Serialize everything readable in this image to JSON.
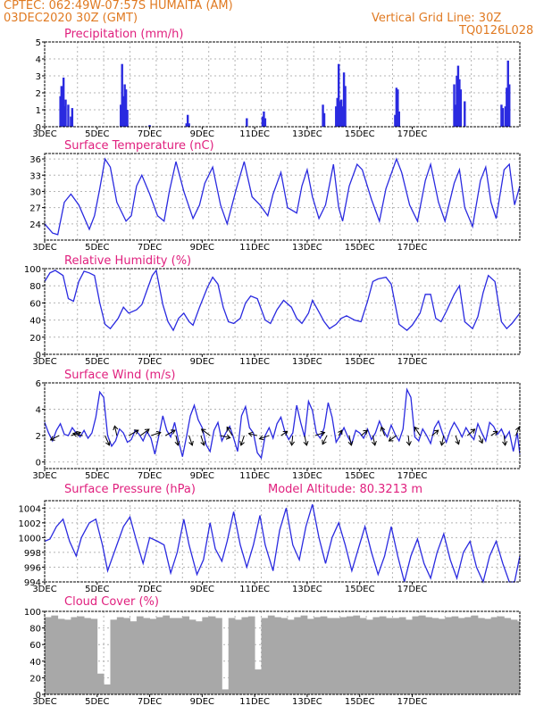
{
  "header": {
    "line1_left": "CPTEC:   062:49W-07:57S   HUMAITA (AM)",
    "line2_left": "03DEC2020 30Z (GMT)",
    "line2_right": "Vertical Grid Line: 30Z",
    "line3_right": "TQ0126L028"
  },
  "colors": {
    "header": "#e07a22",
    "panel_title": "#e0207e",
    "series": "#2a2ae0",
    "cloud": "#a8a8a8",
    "grid": "#b4b4b4"
  },
  "date_labels": [
    "3DEC",
    "5DEC",
    "7DEC",
    "9DEC",
    "11DEC",
    "13DEC",
    "15DEC",
    "17DEC"
  ],
  "chart_data": [
    {
      "id": "precip",
      "type": "bar",
      "title": "Precipitation (mm/h)",
      "ylim": [
        0,
        5
      ],
      "yticks": [
        "0",
        "1",
        "2",
        "3",
        "4",
        "5"
      ],
      "x_unit": "days since 3DEC 00Z",
      "x": [
        0.6,
        0.64,
        0.68,
        0.72,
        0.76,
        0.8,
        0.9,
        1.0,
        1.05,
        2.9,
        2.95,
        3.0,
        3.05,
        3.1,
        3.15,
        4.0,
        5.4,
        5.45,
        5.5,
        7.7,
        8.3,
        8.35,
        8.4,
        10.6,
        10.65,
        11.1,
        11.15,
        11.2,
        11.25,
        11.3,
        11.35,
        11.4,
        11.45,
        13.35,
        13.4,
        13.45,
        13.5,
        15.6,
        15.65,
        15.7,
        15.75,
        15.8,
        15.85,
        16.0,
        17.4,
        17.45,
        17.55,
        17.6,
        17.65,
        17.7
      ],
      "values": [
        1.8,
        2.4,
        1.0,
        2.9,
        1.2,
        1.6,
        1.3,
        0.6,
        1.1,
        1.3,
        3.7,
        1.8,
        2.5,
        2.2,
        1.0,
        0.1,
        0.2,
        0.7,
        0.2,
        0.5,
        0.6,
        0.9,
        0.5,
        1.3,
        0.8,
        1.2,
        1.7,
        3.7,
        1.5,
        1.6,
        1.2,
        3.2,
        2.4,
        0.7,
        2.3,
        2.2,
        0.9,
        2.5,
        1.3,
        3.0,
        3.6,
        2.8,
        2.2,
        1.5,
        1.3,
        1.1,
        1.2,
        2.3,
        3.9,
        2.5
      ]
    },
    {
      "id": "temp",
      "type": "line",
      "title": "Surface Temperature (nC)",
      "ylim": [
        21,
        37
      ],
      "yticks": [
        "24",
        "27",
        "30",
        "33",
        "36"
      ],
      "x_unit": "days since 3DEC 00Z",
      "x": [
        0,
        0.3,
        0.5,
        0.75,
        1.0,
        1.3,
        1.7,
        1.9,
        2.1,
        2.3,
        2.5,
        2.75,
        3.1,
        3.3,
        3.5,
        3.7,
        4.0,
        4.3,
        4.55,
        4.75,
        5.0,
        5.3,
        5.65,
        5.9,
        6.1,
        6.4,
        6.7,
        6.95,
        7.3,
        7.6,
        7.9,
        8.2,
        8.5,
        8.7,
        9.0,
        9.25,
        9.6,
        9.8,
        10.0,
        10.2,
        10.45,
        10.7,
        11.0,
        11.2,
        11.35,
        11.6,
        11.9,
        12.1,
        12.45,
        12.75,
        13.0,
        13.4,
        13.6,
        13.9,
        14.2,
        14.5,
        14.7,
        15.0,
        15.25,
        15.6,
        15.8,
        16.0,
        16.3,
        16.6,
        16.8,
        17.0,
        17.2,
        17.5,
        17.7,
        17.9,
        18.1
      ],
      "values": [
        24.0,
        22.3,
        22.0,
        28.0,
        29.5,
        27.5,
        23.0,
        25.5,
        30.5,
        36.0,
        34.5,
        28.0,
        24.5,
        25.5,
        31.0,
        33.0,
        29.5,
        25.5,
        24.5,
        30.0,
        35.5,
        30.0,
        25.0,
        27.5,
        31.5,
        34.5,
        27.5,
        24.0,
        30.5,
        35.5,
        29.0,
        27.5,
        25.5,
        29.5,
        33.5,
        27.0,
        26.0,
        31.0,
        34.0,
        29.0,
        25.0,
        27.5,
        35.0,
        27.0,
        24.5,
        31.0,
        35.0,
        34.0,
        28.5,
        24.5,
        30.5,
        36.0,
        33.5,
        27.5,
        24.5,
        32.0,
        35.0,
        28.0,
        24.5,
        31.5,
        34.0,
        27.0,
        23.5,
        32.0,
        34.5,
        28.0,
        25.0,
        34.0,
        35.0,
        27.5,
        31.0
      ]
    },
    {
      "id": "rh",
      "type": "line",
      "title": "Relative Humidity (%)",
      "ylim": [
        0,
        100
      ],
      "yticks": [
        "0",
        "20",
        "40",
        "60",
        "80",
        "100"
      ],
      "x_unit": "days since 3DEC 00Z",
      "x": [
        0,
        0.2,
        0.4,
        0.7,
        0.9,
        1.1,
        1.3,
        1.5,
        1.7,
        1.9,
        2.1,
        2.3,
        2.5,
        2.8,
        3.0,
        3.2,
        3.5,
        3.7,
        3.9,
        4.1,
        4.25,
        4.5,
        4.7,
        4.9,
        5.1,
        5.3,
        5.5,
        5.65,
        5.9,
        6.2,
        6.4,
        6.6,
        6.8,
        7.0,
        7.2,
        7.45,
        7.65,
        7.85,
        8.1,
        8.4,
        8.6,
        8.85,
        9.1,
        9.4,
        9.6,
        9.8,
        10.05,
        10.2,
        10.4,
        10.65,
        10.85,
        11.1,
        11.3,
        11.5,
        11.8,
        12.05,
        12.3,
        12.5,
        12.7,
        13.0,
        13.2,
        13.5,
        13.8,
        14.0,
        14.3,
        14.5,
        14.7,
        14.9,
        15.1,
        15.3,
        15.6,
        15.8,
        16.0,
        16.3,
        16.5,
        16.7,
        16.9,
        17.15,
        17.4,
        17.6,
        17.8,
        18.1
      ],
      "values": [
        85,
        95,
        98,
        92,
        65,
        62,
        85,
        97,
        95,
        92,
        60,
        35,
        30,
        42,
        55,
        48,
        52,
        58,
        75,
        92,
        98,
        58,
        38,
        28,
        42,
        48,
        38,
        34,
        55,
        78,
        90,
        82,
        55,
        38,
        36,
        42,
        60,
        68,
        65,
        40,
        36,
        52,
        63,
        55,
        42,
        36,
        48,
        63,
        52,
        38,
        30,
        35,
        42,
        45,
        40,
        38,
        62,
        85,
        88,
        90,
        82,
        35,
        28,
        34,
        48,
        70,
        70,
        42,
        38,
        50,
        70,
        80,
        38,
        30,
        44,
        72,
        92,
        85,
        38,
        30,
        36,
        48
      ]
    },
    {
      "id": "wind",
      "type": "line",
      "title": "Surface Wind (m/s)",
      "ylim": [
        -0.5,
        6
      ],
      "yticks": [
        "0",
        "2",
        "4",
        "6"
      ],
      "x_unit": "days since 3DEC 00Z",
      "x": [
        0,
        0.15,
        0.3,
        0.45,
        0.6,
        0.75,
        0.9,
        1.05,
        1.2,
        1.35,
        1.5,
        1.65,
        1.8,
        1.95,
        2.1,
        2.25,
        2.4,
        2.55,
        2.7,
        2.85,
        3.0,
        3.15,
        3.3,
        3.45,
        3.6,
        3.75,
        3.9,
        4.05,
        4.2,
        4.35,
        4.5,
        4.65,
        4.8,
        4.95,
        5.1,
        5.25,
        5.4,
        5.55,
        5.7,
        5.85,
        6.0,
        6.15,
        6.3,
        6.45,
        6.6,
        6.75,
        6.9,
        7.05,
        7.2,
        7.35,
        7.5,
        7.65,
        7.8,
        7.95,
        8.1,
        8.25,
        8.4,
        8.55,
        8.7,
        8.85,
        9.0,
        9.15,
        9.3,
        9.45,
        9.6,
        9.75,
        9.9,
        10.05,
        10.2,
        10.35,
        10.5,
        10.65,
        10.8,
        10.95,
        11.1,
        11.25,
        11.4,
        11.55,
        11.7,
        11.85,
        12.0,
        12.15,
        12.3,
        12.45,
        12.6,
        12.75,
        12.9,
        13.05,
        13.2,
        13.35,
        13.5,
        13.65,
        13.8,
        13.95,
        14.1,
        14.25,
        14.4,
        14.55,
        14.7,
        14.85,
        15.0,
        15.15,
        15.3,
        15.45,
        15.6,
        15.75,
        15.9,
        16.05,
        16.2,
        16.35,
        16.5,
        16.65,
        16.8,
        16.95,
        17.1,
        17.25,
        17.4,
        17.55,
        17.7,
        17.85,
        18.0,
        18.1
      ],
      "values": [
        3.0,
        2.2,
        1.6,
        2.4,
        2.9,
        2.1,
        2.0,
        2.6,
        2.2,
        1.9,
        2.4,
        1.8,
        2.2,
        3.4,
        5.3,
        4.9,
        2.0,
        1.2,
        1.6,
        2.5,
        2.2,
        1.5,
        1.7,
        2.4,
        2.1,
        1.6,
        2.3,
        1.8,
        0.6,
        2.0,
        3.5,
        2.4,
        1.9,
        3.0,
        1.6,
        0.4,
        1.9,
        3.5,
        4.3,
        3.2,
        2.6,
        1.3,
        0.8,
        2.4,
        3.0,
        1.6,
        2.2,
        2.7,
        1.8,
        0.8,
        3.5,
        4.2,
        2.6,
        2.2,
        0.7,
        0.3,
        2.0,
        2.6,
        1.8,
        2.9,
        3.4,
        2.3,
        1.7,
        2.2,
        4.3,
        3.0,
        1.9,
        4.6,
        3.9,
        2.2,
        1.8,
        2.6,
        4.5,
        3.4,
        1.5,
        2.0,
        2.6,
        1.9,
        1.4,
        2.4,
        2.2,
        1.8,
        2.5,
        1.7,
        2.2,
        3.1,
        2.4,
        1.9,
        2.8,
        2.1,
        1.6,
        2.5,
        5.5,
        4.9,
        1.9,
        1.6,
        2.5,
        2.0,
        1.4,
        2.6,
        3.1,
        2.2,
        1.5,
        2.4,
        3.0,
        2.5,
        1.9,
        2.6,
        2.1,
        1.7,
        2.9,
        2.2,
        1.6,
        3.0,
        2.7,
        2.1,
        2.5,
        1.8,
        2.3,
        0.8,
        2.2,
        0.6
      ],
      "vectors_x": [
        0.55,
        1.0,
        1.45,
        2.3,
        2.75,
        3.2,
        3.65,
        4.05,
        4.6,
        5.0,
        5.5,
        5.95,
        6.3,
        6.7,
        7.15,
        7.6,
        8.1,
        8.55,
        9.0,
        9.45,
        9.9,
        10.3,
        10.75,
        11.2,
        11.6,
        12.05,
        12.5,
        12.95,
        13.4,
        13.85,
        14.3,
        14.75,
        15.2,
        15.65,
        16.1,
        16.55,
        17.0,
        17.5,
        17.95
      ],
      "vectors_u": [
        -0.8,
        0.9,
        -0.9,
        0.4,
        -0.2,
        0.9,
        0.8,
        0.9,
        0.9,
        0.2,
        0.3,
        0.3,
        -0.8,
        0.9,
        -0.5,
        -0.3,
        -0.8,
        -0.9,
        0.6,
        -0.1,
        0.2,
        0.9,
        -0.4,
        0.3,
        0.2,
        0.6,
        0.2,
        -0.3,
        -0.7,
        0.1,
        -0.5,
        0.6,
        -0.2,
        0.3,
        0.7,
        0.3,
        0.6,
        0.1,
        0.3
      ],
      "vectors_v": [
        -0.4,
        0.3,
        0.2,
        -0.9,
        0.9,
        0.5,
        0.6,
        0.3,
        0.5,
        -0.9,
        -0.9,
        -0.9,
        0.6,
        -0.2,
        0.8,
        -0.9,
        0.2,
        -0.3,
        0.4,
        -0.9,
        -0.9,
        0.3,
        -0.8,
        0.5,
        -0.9,
        0.5,
        -0.9,
        0.8,
        -0.5,
        -0.9,
        0.8,
        0.5,
        -0.9,
        -0.8,
        0.6,
        -0.7,
        0.4,
        -0.9,
        0.8
      ]
    },
    {
      "id": "press",
      "type": "line",
      "title": "Surface Pressure (hPa)",
      "subtitle": "Model Altitude: 80.3213 m",
      "ylim": [
        994,
        1005
      ],
      "yticks": [
        "994",
        "996",
        "998",
        "1000",
        "1002",
        "1004"
      ],
      "x_unit": "days since 3DEC 00Z",
      "x": [
        0,
        0.2,
        0.45,
        0.7,
        0.95,
        1.2,
        1.4,
        1.7,
        1.95,
        2.2,
        2.4,
        2.75,
        3.0,
        3.25,
        3.5,
        3.75,
        4.0,
        4.3,
        4.55,
        4.8,
        5.05,
        5.3,
        5.5,
        5.8,
        6.05,
        6.3,
        6.5,
        6.75,
        6.95,
        7.2,
        7.45,
        7.7,
        7.95,
        8.2,
        8.4,
        8.7,
        8.95,
        9.2,
        9.45,
        9.7,
        9.95,
        10.2,
        10.45,
        10.7,
        10.95,
        11.2,
        11.45,
        11.7,
        11.95,
        12.2,
        12.45,
        12.7,
        12.95,
        13.2,
        13.45,
        13.7,
        13.95,
        14.2,
        14.45,
        14.7,
        14.95,
        15.2,
        15.45,
        15.7,
        15.95,
        16.2,
        16.45,
        16.7,
        16.95,
        17.2,
        17.45,
        17.7,
        17.9,
        18.1
      ],
      "values": [
        999.5,
        999.8,
        1001.5,
        1002.5,
        999.5,
        997.5,
        1000.0,
        1002.0,
        1002.5,
        999.0,
        995.5,
        999.0,
        1001.5,
        1002.8,
        999.5,
        996.5,
        1000.0,
        999.5,
        999.0,
        995.2,
        998.0,
        1002.5,
        999.0,
        995.0,
        997.0,
        1002.0,
        998.5,
        996.8,
        999.5,
        1003.5,
        999.0,
        996.0,
        999.0,
        1003.0,
        999.0,
        995.5,
        1001.0,
        1004.0,
        999.0,
        997.0,
        1001.5,
        1004.5,
        1000.0,
        996.5,
        1000.0,
        1002.0,
        999.0,
        995.5,
        998.5,
        1001.5,
        998.0,
        995.0,
        997.5,
        1001.5,
        997.5,
        994.0,
        997.5,
        999.8,
        996.5,
        994.5,
        998.0,
        1000.5,
        997.0,
        994.5,
        998.0,
        999.5,
        996.0,
        994.0,
        997.5,
        999.5,
        996.5,
        993.5,
        994.0,
        997.5
      ]
    },
    {
      "id": "cloud",
      "type": "bar",
      "title": "Cloud Cover (%)",
      "ylim": [
        0,
        100
      ],
      "yticks": [
        "0",
        "20",
        "40",
        "60",
        "80",
        "100"
      ],
      "x_unit": "days since 3DEC 00Z",
      "x": [
        0.0,
        0.25,
        0.5,
        0.75,
        1.0,
        1.25,
        1.5,
        1.75,
        2.0,
        2.25,
        2.5,
        2.75,
        3.0,
        3.25,
        3.5,
        3.75,
        4.0,
        4.25,
        4.5,
        4.75,
        5.0,
        5.25,
        5.5,
        5.75,
        6.0,
        6.25,
        6.5,
        6.75,
        7.0,
        7.25,
        7.5,
        7.75,
        8.0,
        8.25,
        8.5,
        8.75,
        9.0,
        9.25,
        9.5,
        9.75,
        10.0,
        10.25,
        10.5,
        10.75,
        11.0,
        11.25,
        11.5,
        11.75,
        12.0,
        12.25,
        12.5,
        12.75,
        13.0,
        13.25,
        13.5,
        13.75,
        14.0,
        14.25,
        14.5,
        14.75,
        15.0,
        15.25,
        15.5,
        15.75,
        16.0,
        16.25,
        16.5,
        16.75,
        17.0,
        17.25,
        17.5,
        17.75,
        18.0
      ],
      "values": [
        93,
        95,
        91,
        90,
        93,
        94,
        92,
        91,
        25,
        12,
        90,
        93,
        92,
        88,
        94,
        92,
        91,
        93,
        95,
        92,
        92,
        94,
        90,
        88,
        93,
        94,
        92,
        6,
        92,
        90,
        93,
        94,
        30,
        92,
        95,
        93,
        92,
        90,
        93,
        95,
        91,
        93,
        94,
        92,
        92,
        93,
        94,
        95,
        92,
        90,
        93,
        94,
        92,
        92,
        93,
        90,
        94,
        95,
        93,
        92,
        91,
        93,
        94,
        92,
        93,
        95,
        92,
        91,
        93,
        94,
        92,
        90,
        88
      ]
    }
  ]
}
